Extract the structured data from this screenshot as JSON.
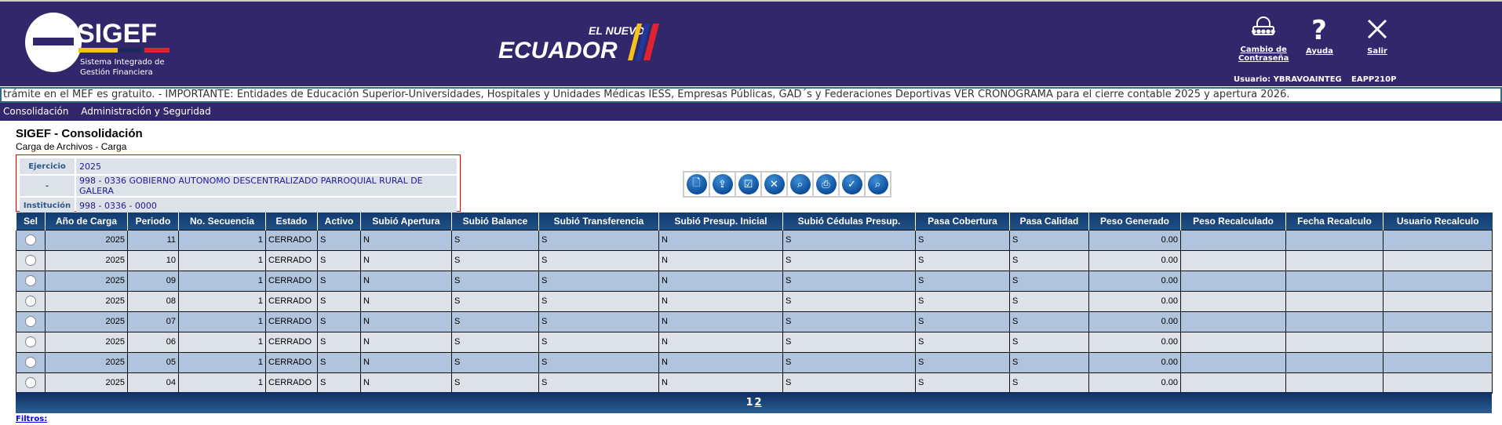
{
  "header": {
    "logo_text": "SIGEF",
    "logo_sub1": "Sistema Integrado de",
    "logo_sub2": "Gestión Financiera",
    "ecuador_logo": "EL NUEVO ECUADOR",
    "buttons": [
      {
        "label1": "Cambio de",
        "label2": "Contraseña",
        "icon": "lock-icon"
      },
      {
        "label1": "Ayuda",
        "icon": "question-icon"
      },
      {
        "label1": "Salir",
        "icon": "close-icon"
      }
    ],
    "user": "Usuario: YBRAVOAINTEG",
    "server": "EAPP210P"
  },
  "ticker": "trámite en el MEF es gratuito. - IMPORTANTE: Entidades de Educación Superior-Universidades, Hospitales y Unidades Médicas IESS, Empresas Públicas, GAD´s y Federaciones Deportivas VER CRONOGRAMA para el cierre contable 2025 y apertura 2026.",
  "menu": [
    "Consolidación",
    "Administración y Seguridad"
  ],
  "page": {
    "title": "SIGEF - Consolidación",
    "subtitle": "Carga de Archivos - Carga"
  },
  "info": [
    {
      "k": "Ejercicio",
      "v": "2025"
    },
    {
      "k": "-",
      "v": "998 - 0336 GOBIERNO AUTONOMO DESCENTRALIZADO PARROQUIAL RURAL DE GALERA"
    },
    {
      "k": "Institución",
      "v": "998 - 0336 - 0000"
    }
  ],
  "toolbar": [
    "new-file-icon",
    "upload-icon",
    "validate-grid-icon",
    "delete-icon",
    "search-file-icon",
    "print-icon",
    "check-c-icon",
    "search-db-icon"
  ],
  "table": {
    "columns": [
      "Sel",
      "Año de Carga",
      "Periodo",
      "No. Secuencia",
      "Estado",
      "Activo",
      "Subió Apertura",
      "Subió Balance",
      "Subió Transferencia",
      "Subió Presup. Inicial",
      "Subió Cédulas Presup.",
      "Pasa Cobertura",
      "Pasa Calidad",
      "Peso Generado",
      "Peso Recalculado",
      "Fecha Recalculo",
      "Usuario Recalculo"
    ],
    "rows": [
      [
        "2025",
        "11",
        "1",
        "CERRADO",
        "S",
        "N",
        "S",
        "S",
        "N",
        "S",
        "S",
        "S",
        "0.00",
        "",
        "",
        ""
      ],
      [
        "2025",
        "10",
        "1",
        "CERRADO",
        "S",
        "N",
        "S",
        "S",
        "N",
        "S",
        "S",
        "S",
        "0.00",
        "",
        "",
        ""
      ],
      [
        "2025",
        "09",
        "1",
        "CERRADO",
        "S",
        "N",
        "S",
        "S",
        "N",
        "S",
        "S",
        "S",
        "0.00",
        "",
        "",
        ""
      ],
      [
        "2025",
        "08",
        "1",
        "CERRADO",
        "S",
        "N",
        "S",
        "S",
        "N",
        "S",
        "S",
        "S",
        "0.00",
        "",
        "",
        ""
      ],
      [
        "2025",
        "07",
        "1",
        "CERRADO",
        "S",
        "N",
        "S",
        "S",
        "N",
        "S",
        "S",
        "S",
        "0.00",
        "",
        "",
        ""
      ],
      [
        "2025",
        "06",
        "1",
        "CERRADO",
        "S",
        "N",
        "S",
        "S",
        "N",
        "S",
        "S",
        "S",
        "0.00",
        "",
        "",
        ""
      ],
      [
        "2025",
        "05",
        "1",
        "CERRADO",
        "S",
        "N",
        "S",
        "S",
        "N",
        "S",
        "S",
        "S",
        "0.00",
        "",
        "",
        ""
      ],
      [
        "2025",
        "04",
        "1",
        "CERRADO",
        "S",
        "N",
        "S",
        "S",
        "N",
        "S",
        "S",
        "S",
        "0.00",
        "",
        "",
        ""
      ]
    ]
  },
  "pager": [
    "1",
    "2"
  ],
  "filtros": "Filtros:"
}
